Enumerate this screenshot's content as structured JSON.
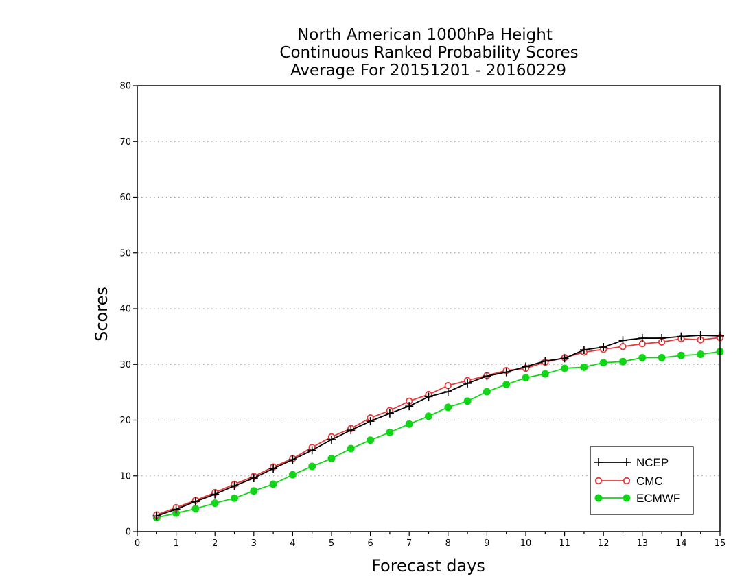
{
  "chart_data": {
    "type": "line",
    "title_lines": [
      "North American 1000hPa Height",
      "Continuous Ranked Probability Scores",
      "Average For 20151201 - 20160229"
    ],
    "xlabel": "Forecast days",
    "ylabel": "Scores",
    "xlim": [
      0,
      15
    ],
    "ylim": [
      0,
      80
    ],
    "x_ticks": [
      "0",
      "1",
      "2",
      "3",
      "4",
      "5",
      "6",
      "7",
      "8",
      "9",
      "10",
      "11",
      "12",
      "13",
      "14",
      "15"
    ],
    "y_ticks": [
      "0",
      "10",
      "20",
      "30",
      "40",
      "50",
      "60",
      "70",
      "80"
    ],
    "grid": "horizontal dotted",
    "legend_position": "bottom-right",
    "x": [
      0.5,
      1,
      1.5,
      2,
      2.5,
      3,
      3.5,
      4,
      4.5,
      5,
      5.5,
      6,
      6.5,
      7,
      7.5,
      8,
      8.5,
      9,
      9.5,
      10,
      10.5,
      11,
      11.5,
      12,
      12.5,
      13,
      13.5,
      14,
      14.5,
      15
    ],
    "series": [
      {
        "name": "NCEP",
        "color": "#000000",
        "marker": "plus",
        "values": [
          2.8,
          4.0,
          5.4,
          6.7,
          8.2,
          9.6,
          11.3,
          12.9,
          14.6,
          16.5,
          18.2,
          19.8,
          21.2,
          22.5,
          24.2,
          25.1,
          26.6,
          27.9,
          28.6,
          29.6,
          30.6,
          31.1,
          32.6,
          33.1,
          34.3,
          34.7,
          34.7,
          35.0,
          35.2,
          35.1
        ]
      },
      {
        "name": "CMC",
        "color": "#e8393a",
        "marker": "open-circle",
        "values": [
          3.0,
          4.3,
          5.6,
          7.0,
          8.5,
          9.9,
          11.6,
          13.1,
          15.1,
          17.0,
          18.5,
          20.4,
          21.7,
          23.4,
          24.6,
          26.2,
          27.1,
          28.0,
          28.9,
          29.3,
          30.4,
          31.2,
          32.2,
          32.7,
          33.2,
          33.7,
          34.0,
          34.6,
          34.4,
          34.8
        ]
      },
      {
        "name": "ECMWF",
        "color": "#11d617",
        "marker": "filled-circle",
        "values": [
          2.5,
          3.3,
          4.1,
          5.1,
          6.0,
          7.3,
          8.5,
          10.2,
          11.7,
          13.1,
          14.9,
          16.4,
          17.8,
          19.3,
          20.7,
          22.3,
          23.4,
          25.1,
          26.4,
          27.6,
          28.3,
          29.3,
          29.5,
          30.3,
          30.5,
          31.2,
          31.2,
          31.6,
          31.8,
          32.3
        ]
      }
    ]
  }
}
